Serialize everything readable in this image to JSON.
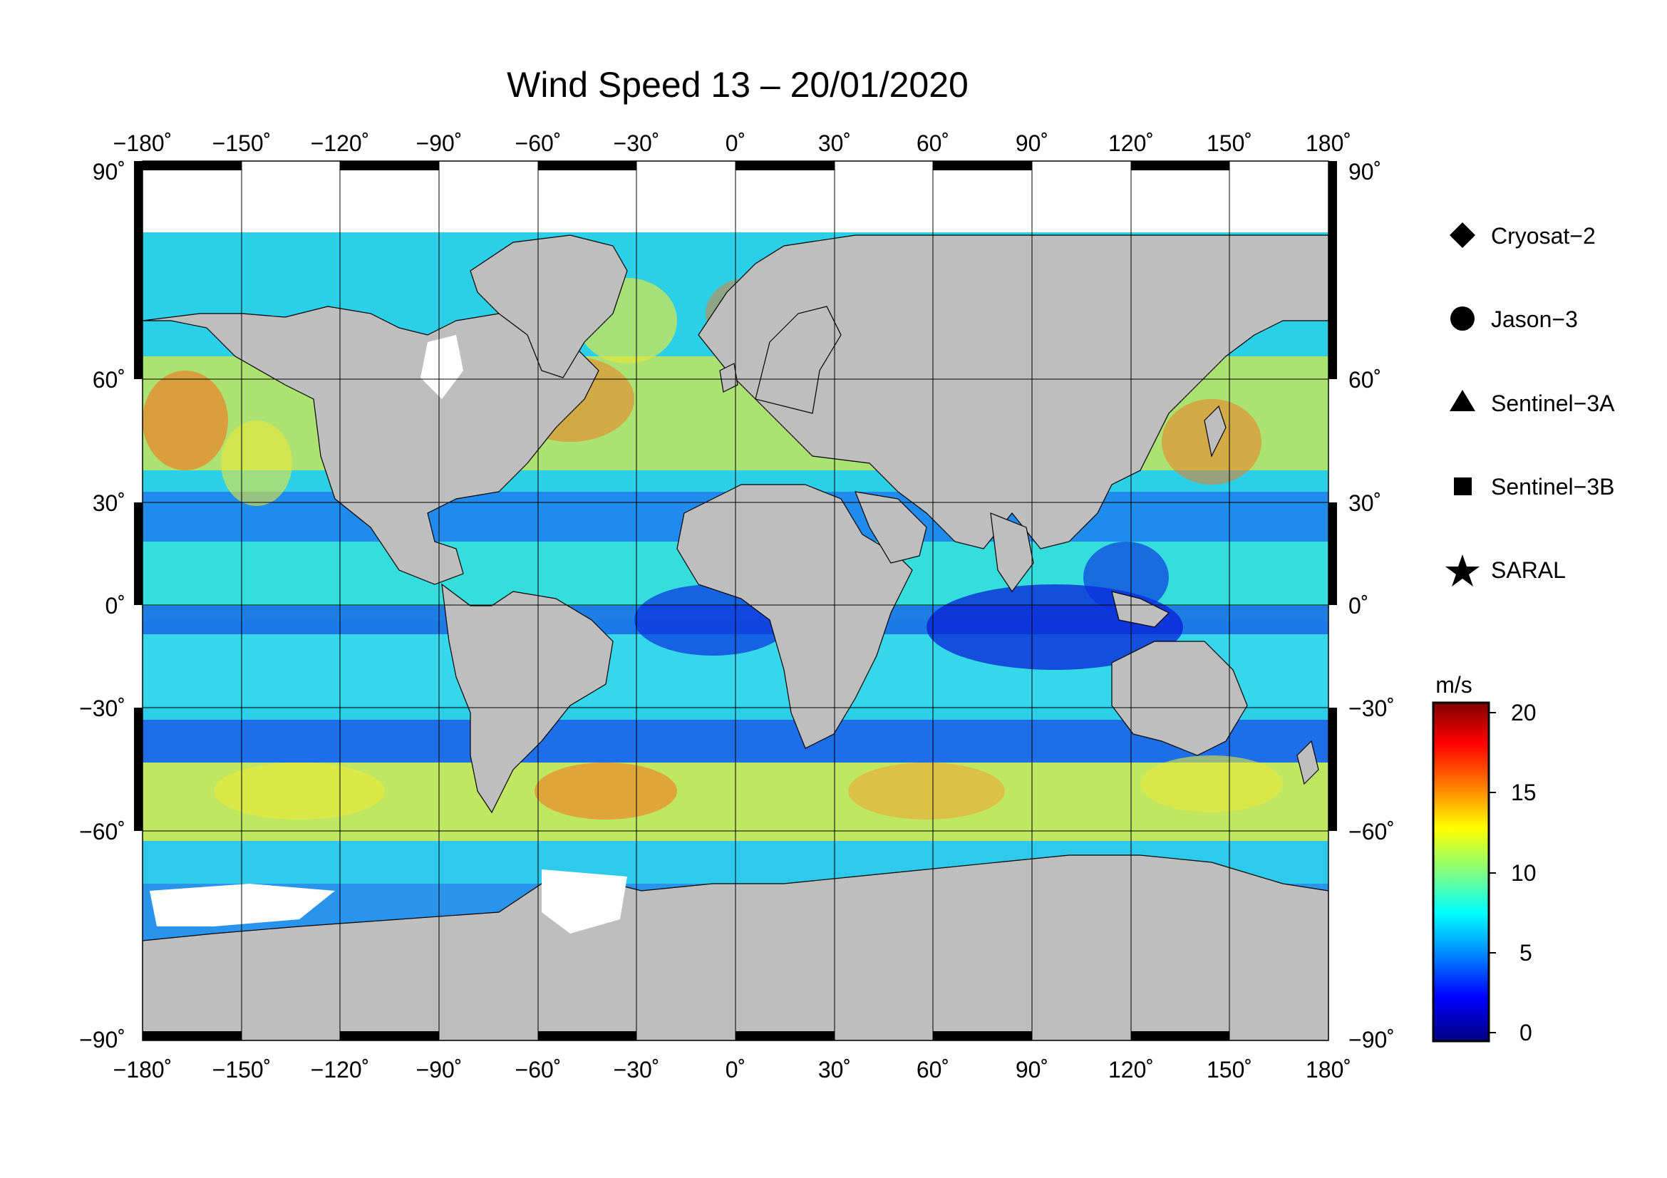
{
  "title": "Wind Speed 13 – 20/01/2020",
  "map": {
    "lon_ticks": [
      "−180˚",
      "−150˚",
      "−120˚",
      "−90˚",
      "−60˚",
      "−30˚",
      "0˚",
      "30˚",
      "60˚",
      "90˚",
      "120˚",
      "150˚",
      "180˚"
    ],
    "lat_ticks": [
      "90˚",
      "60˚",
      "30˚",
      "0˚",
      "−30˚",
      "−60˚",
      "−90˚"
    ],
    "colors": {
      "land": "#bebebe",
      "ice": "#ffffff",
      "ocean_calm": "#0a35e0",
      "ocean_mid": "#28d2ee",
      "ocean_high": "#e8e83a",
      "ocean_storm": "#f07a20"
    }
  },
  "legend": {
    "items": [
      {
        "label": "Cryosat−2",
        "icon": "diamond-icon"
      },
      {
        "label": "Jason−3",
        "icon": "circle-icon"
      },
      {
        "label": "Sentinel−3A",
        "icon": "triangle-icon"
      },
      {
        "label": "Sentinel−3B",
        "icon": "square-icon"
      },
      {
        "label": "SARAL",
        "icon": "star-icon"
      }
    ]
  },
  "colorbar": {
    "unit": "m/s",
    "ticks": [
      "20",
      "15",
      "10",
      "5",
      "0"
    ],
    "colors": [
      "#800000",
      "#ff0000",
      "#ff8000",
      "#ffff00",
      "#80ff80",
      "#00ffff",
      "#0080ff",
      "#0000ff",
      "#000080"
    ]
  }
}
